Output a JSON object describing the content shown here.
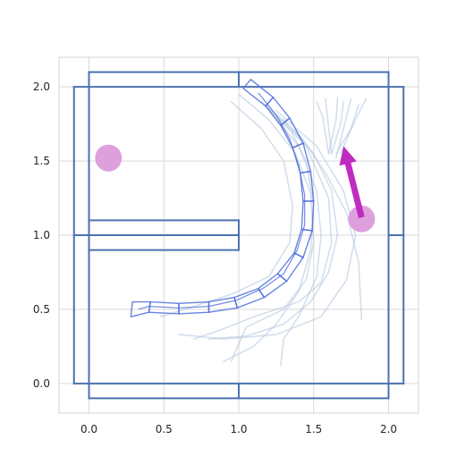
{
  "chart_data": {
    "type": "scatter",
    "title": "",
    "xlabel": "",
    "ylabel": "",
    "xlim": [
      -0.2,
      2.2
    ],
    "ylim": [
      -0.2,
      2.2
    ],
    "grid": true,
    "x_ticks": [
      "0.0",
      "0.5",
      "1.0",
      "1.5",
      "2.0"
    ],
    "x_tick_values": [
      0.0,
      0.5,
      1.0,
      1.5,
      2.0
    ],
    "y_ticks": [
      "0.0",
      "0.5",
      "1.0",
      "1.5",
      "2.0"
    ],
    "y_tick_values": [
      0.0,
      0.5,
      1.0,
      1.5,
      2.0
    ],
    "colors": {
      "walls": "#4c72b0",
      "robot": "#4f6fdc",
      "trajectories": "#b0c4de",
      "goal": "#dda0dd",
      "arrow": "#c02bc0"
    },
    "walls": [
      {
        "x0": 0.0,
        "y0": 2.0,
        "x1": 2.0,
        "y1": 2.0
      },
      {
        "x0": 0.0,
        "y0": 2.1,
        "x1": 2.0,
        "y1": 2.1
      },
      {
        "x0": 0.0,
        "y0": 2.0,
        "x1": 0.0,
        "y1": 2.1
      },
      {
        "x0": 2.0,
        "y0": 2.0,
        "x1": 2.0,
        "y1": 2.1
      },
      {
        "x0": 1.0,
        "y0": 2.0,
        "x1": 1.0,
        "y1": 2.1
      },
      {
        "x0": 0.0,
        "y0": -0.1,
        "x1": 2.0,
        "y1": -0.1
      },
      {
        "x0": 0.0,
        "y0": 0.0,
        "x1": 2.0,
        "y1": 0.0
      },
      {
        "x0": 0.0,
        "y0": -0.1,
        "x1": 0.0,
        "y1": 0.0
      },
      {
        "x0": 2.0,
        "y0": -0.1,
        "x1": 2.0,
        "y1": 0.0
      },
      {
        "x0": 1.0,
        "y0": -0.1,
        "x1": 1.0,
        "y1": 0.0
      },
      {
        "x0": -0.1,
        "y0": 0.0,
        "x1": -0.1,
        "y1": 2.0
      },
      {
        "x0": 0.0,
        "y0": 0.0,
        "x1": 0.0,
        "y1": 2.0
      },
      {
        "x0": -0.1,
        "y0": 2.0,
        "x1": 0.0,
        "y1": 2.0
      },
      {
        "x0": -0.1,
        "y0": 0.0,
        "x1": 0.0,
        "y1": 0.0
      },
      {
        "x0": -0.1,
        "y0": 1.0,
        "x1": 0.0,
        "y1": 1.0
      },
      {
        "x0": 2.0,
        "y0": 0.0,
        "x1": 2.0,
        "y1": 2.0
      },
      {
        "x0": 2.1,
        "y0": 0.0,
        "x1": 2.1,
        "y1": 2.0
      },
      {
        "x0": 2.0,
        "y0": 2.0,
        "x1": 2.1,
        "y1": 2.0
      },
      {
        "x0": 2.0,
        "y0": 0.0,
        "x1": 2.1,
        "y1": 0.0
      },
      {
        "x0": 2.0,
        "y0": 1.0,
        "x1": 2.1,
        "y1": 1.0
      },
      {
        "x0": 0.0,
        "y0": 1.0,
        "x1": 1.0,
        "y1": 1.0
      },
      {
        "x0": 0.0,
        "y0": 1.1,
        "x1": 1.0,
        "y1": 1.1
      },
      {
        "x0": 0.0,
        "y0": 0.9,
        "x1": 1.0,
        "y1": 0.9
      },
      {
        "x0": 1.0,
        "y0": 0.9,
        "x1": 1.0,
        "y1": 1.1
      }
    ],
    "robot_segments": [
      [
        [
          1.03,
          1.99
        ],
        [
          1.08,
          2.05
        ],
        [
          1.23,
          1.93
        ],
        [
          1.18,
          1.87
        ]
      ],
      [
        [
          1.18,
          1.87
        ],
        [
          1.23,
          1.93
        ],
        [
          1.34,
          1.79
        ],
        [
          1.28,
          1.74
        ]
      ],
      [
        [
          1.28,
          1.74
        ],
        [
          1.34,
          1.79
        ],
        [
          1.43,
          1.62
        ],
        [
          1.36,
          1.59
        ]
      ],
      [
        [
          1.36,
          1.59
        ],
        [
          1.43,
          1.62
        ],
        [
          1.48,
          1.43
        ],
        [
          1.41,
          1.42
        ]
      ],
      [
        [
          1.41,
          1.42
        ],
        [
          1.48,
          1.43
        ],
        [
          1.5,
          1.23
        ],
        [
          1.43,
          1.23
        ]
      ],
      [
        [
          1.43,
          1.23
        ],
        [
          1.5,
          1.23
        ],
        [
          1.49,
          1.03
        ],
        [
          1.42,
          1.04
        ]
      ],
      [
        [
          1.42,
          1.04
        ],
        [
          1.49,
          1.03
        ],
        [
          1.43,
          0.85
        ],
        [
          1.37,
          0.88
        ]
      ],
      [
        [
          1.37,
          0.88
        ],
        [
          1.43,
          0.85
        ],
        [
          1.32,
          0.69
        ],
        [
          1.26,
          0.74
        ]
      ],
      [
        [
          1.26,
          0.74
        ],
        [
          1.32,
          0.69
        ],
        [
          1.17,
          0.58
        ],
        [
          1.13,
          0.64
        ]
      ],
      [
        [
          1.13,
          0.64
        ],
        [
          1.17,
          0.58
        ],
        [
          0.99,
          0.51
        ],
        [
          0.97,
          0.58
        ]
      ],
      [
        [
          0.97,
          0.58
        ],
        [
          0.99,
          0.51
        ],
        [
          0.8,
          0.48
        ],
        [
          0.8,
          0.55
        ]
      ],
      [
        [
          0.8,
          0.55
        ],
        [
          0.8,
          0.48
        ],
        [
          0.6,
          0.47
        ],
        [
          0.6,
          0.54
        ]
      ],
      [
        [
          0.6,
          0.54
        ],
        [
          0.6,
          0.47
        ],
        [
          0.4,
          0.48
        ],
        [
          0.41,
          0.55
        ]
      ],
      [
        [
          0.41,
          0.55
        ],
        [
          0.4,
          0.48
        ],
        [
          0.28,
          0.45
        ],
        [
          0.29,
          0.55
        ]
      ]
    ],
    "robot_spine": [
      [
        1.13,
        1.96
      ],
      [
        1.25,
        1.81
      ],
      [
        1.34,
        1.65
      ],
      [
        1.4,
        1.47
      ],
      [
        1.44,
        1.27
      ],
      [
        1.44,
        1.07
      ],
      [
        1.39,
        0.9
      ],
      [
        1.3,
        0.74
      ],
      [
        1.16,
        0.64
      ],
      [
        0.98,
        0.56
      ],
      [
        0.8,
        0.52
      ],
      [
        0.6,
        0.51
      ],
      [
        0.4,
        0.52
      ],
      [
        0.33,
        0.5
      ]
    ],
    "trajectories": [
      [
        [
          1.18,
          1.88
        ],
        [
          1.42,
          1.66
        ],
        [
          1.58,
          1.42
        ],
        [
          1.72,
          1.15
        ],
        [
          1.8,
          0.82
        ],
        [
          1.82,
          0.43
        ]
      ],
      [
        [
          1.2,
          1.86
        ],
        [
          1.45,
          1.6
        ],
        [
          1.6,
          1.25
        ],
        [
          1.62,
          0.95
        ],
        [
          1.55,
          0.68
        ],
        [
          1.4,
          0.55
        ],
        [
          1.1,
          0.45
        ],
        [
          0.85,
          0.35
        ],
        [
          0.7,
          0.3
        ]
      ],
      [
        [
          1.25,
          1.84
        ],
        [
          1.52,
          1.6
        ],
        [
          1.7,
          1.3
        ],
        [
          1.78,
          1.0
        ],
        [
          1.72,
          0.7
        ],
        [
          1.55,
          0.45
        ],
        [
          1.25,
          0.33
        ],
        [
          0.9,
          0.3
        ],
        [
          0.6,
          0.33
        ]
      ],
      [
        [
          1.15,
          1.9
        ],
        [
          1.35,
          1.7
        ],
        [
          1.45,
          1.5
        ],
        [
          1.5,
          1.2
        ],
        [
          1.48,
          0.9
        ],
        [
          1.4,
          0.62
        ],
        [
          1.25,
          0.4
        ],
        [
          1.1,
          0.25
        ],
        [
          0.9,
          0.15
        ]
      ],
      [
        [
          1.2,
          1.85
        ],
        [
          1.4,
          1.6
        ],
        [
          1.52,
          1.3
        ],
        [
          1.55,
          1.0
        ],
        [
          1.52,
          0.72
        ],
        [
          1.4,
          0.45
        ],
        [
          1.3,
          0.3
        ],
        [
          1.28,
          0.12
        ]
      ],
      [
        [
          1.0,
          1.95
        ],
        [
          1.2,
          1.78
        ],
        [
          1.38,
          1.55
        ],
        [
          1.48,
          1.28
        ],
        [
          1.5,
          0.95
        ],
        [
          1.45,
          0.7
        ],
        [
          1.3,
          0.5
        ],
        [
          1.05,
          0.38
        ],
        [
          0.95,
          0.15
        ]
      ],
      [
        [
          0.95,
          1.9
        ],
        [
          1.15,
          1.72
        ],
        [
          1.3,
          1.5
        ],
        [
          1.36,
          1.2
        ],
        [
          1.34,
          0.95
        ],
        [
          1.2,
          0.72
        ],
        [
          0.95,
          0.6
        ],
        [
          0.7,
          0.52
        ],
        [
          0.48,
          0.45
        ]
      ],
      [
        [
          1.3,
          1.78
        ],
        [
          1.5,
          1.55
        ],
        [
          1.62,
          1.3
        ],
        [
          1.66,
          1.0
        ],
        [
          1.6,
          0.75
        ],
        [
          1.48,
          0.55
        ],
        [
          1.3,
          0.4
        ],
        [
          1.05,
          0.32
        ],
        [
          0.8,
          0.3
        ]
      ],
      [
        [
          1.62,
          1.55
        ],
        [
          1.68,
          1.75
        ],
        [
          1.7,
          1.9
        ]
      ],
      [
        [
          1.65,
          1.55
        ],
        [
          1.75,
          1.72
        ],
        [
          1.8,
          1.88
        ]
      ],
      [
        [
          1.62,
          1.55
        ],
        [
          1.6,
          1.72
        ],
        [
          1.58,
          1.92
        ]
      ],
      [
        [
          1.65,
          1.52
        ],
        [
          1.72,
          1.8
        ],
        [
          1.75,
          1.92
        ]
      ],
      [
        [
          1.6,
          1.55
        ],
        [
          1.65,
          1.78
        ],
        [
          1.66,
          1.93
        ]
      ],
      [
        [
          1.68,
          1.55
        ],
        [
          1.78,
          1.78
        ],
        [
          1.85,
          1.92
        ]
      ],
      [
        [
          1.6,
          1.55
        ],
        [
          1.56,
          1.8
        ],
        [
          1.52,
          1.9
        ]
      ]
    ],
    "goals": [
      {
        "x": 0.13,
        "y": 1.52
      },
      {
        "x": 1.82,
        "y": 1.11
      }
    ],
    "arrow": {
      "x0": 1.82,
      "y0": 1.12,
      "x1": 1.7,
      "y1": 1.6
    }
  }
}
